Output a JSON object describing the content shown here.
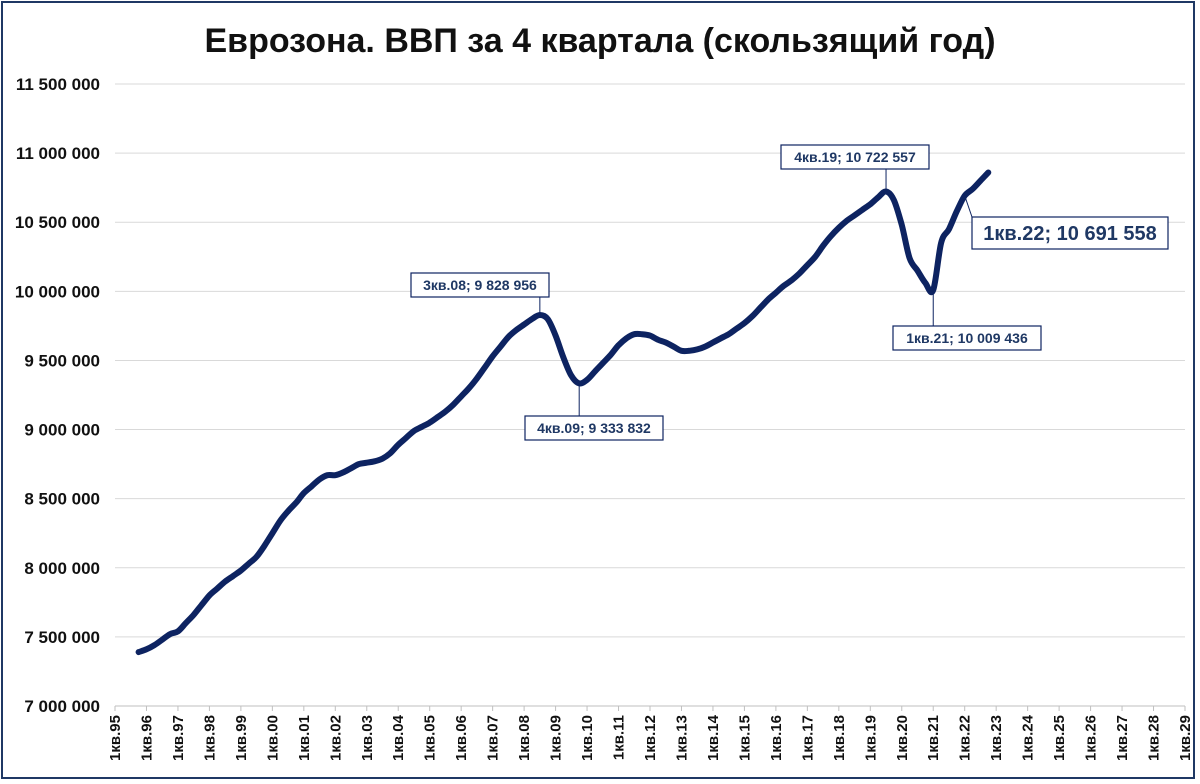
{
  "chart_data": {
    "type": "line",
    "title": "Еврозона. ВВП за 4 квартала (скользящий год)",
    "xlabel": "",
    "ylabel": "",
    "ylim": [
      7000000,
      11500000
    ],
    "y_ticks": [
      7000000,
      7500000,
      8000000,
      8500000,
      9000000,
      9500000,
      10000000,
      10500000,
      11000000,
      11500000
    ],
    "y_tick_labels": [
      "7 000 000",
      "7 500 000",
      "8 000 000",
      "8 500 000",
      "9 000 000",
      "9 500 000",
      "10 000 000",
      "10 500 000",
      "11 000 000",
      "11 500 000"
    ],
    "x_tick_labels": [
      "1кв.95",
      "1кв.96",
      "1кв.97",
      "1кв.98",
      "1кв.99",
      "1кв.00",
      "1кв.01",
      "1кв.02",
      "1кв.03",
      "1кв.04",
      "1кв.05",
      "1кв.06",
      "1кв.07",
      "1кв.08",
      "1кв.09",
      "1кв.10",
      "1кв.11",
      "1кв.12",
      "1кв.13",
      "1кв.14",
      "1кв.15",
      "1кв.16",
      "1кв.17",
      "1кв.18",
      "1кв.19",
      "1кв.20",
      "1кв.21",
      "1кв.22",
      "1кв.23",
      "1кв.24",
      "1кв.25",
      "1кв.26",
      "1кв.27",
      "1кв.28",
      "1кв.29"
    ],
    "grid": true,
    "line_color": "#0d2361",
    "series": [
      {
        "values": [
          [
            1995.75,
            7390000
          ],
          [
            1996.0,
            7410000
          ],
          [
            1996.25,
            7440000
          ],
          [
            1996.5,
            7480000
          ],
          [
            1996.75,
            7520000
          ],
          [
            1997.0,
            7540000
          ],
          [
            1997.25,
            7600000
          ],
          [
            1997.5,
            7660000
          ],
          [
            1997.75,
            7730000
          ],
          [
            1998.0,
            7800000
          ],
          [
            1998.25,
            7850000
          ],
          [
            1998.5,
            7900000
          ],
          [
            1998.75,
            7940000
          ],
          [
            1999.0,
            7980000
          ],
          [
            1999.25,
            8030000
          ],
          [
            1999.5,
            8080000
          ],
          [
            1999.75,
            8160000
          ],
          [
            2000.0,
            8250000
          ],
          [
            2000.25,
            8340000
          ],
          [
            2000.5,
            8410000
          ],
          [
            2000.75,
            8470000
          ],
          [
            2001.0,
            8540000
          ],
          [
            2001.25,
            8590000
          ],
          [
            2001.5,
            8640000
          ],
          [
            2001.75,
            8670000
          ],
          [
            2002.0,
            8670000
          ],
          [
            2002.25,
            8690000
          ],
          [
            2002.5,
            8720000
          ],
          [
            2002.75,
            8750000
          ],
          [
            2003.0,
            8760000
          ],
          [
            2003.25,
            8770000
          ],
          [
            2003.5,
            8790000
          ],
          [
            2003.75,
            8830000
          ],
          [
            2004.0,
            8890000
          ],
          [
            2004.25,
            8940000
          ],
          [
            2004.5,
            8990000
          ],
          [
            2004.75,
            9020000
          ],
          [
            2005.0,
            9050000
          ],
          [
            2005.25,
            9090000
          ],
          [
            2005.5,
            9130000
          ],
          [
            2005.75,
            9180000
          ],
          [
            2006.0,
            9240000
          ],
          [
            2006.25,
            9300000
          ],
          [
            2006.5,
            9370000
          ],
          [
            2006.75,
            9450000
          ],
          [
            2007.0,
            9530000
          ],
          [
            2007.25,
            9600000
          ],
          [
            2007.5,
            9670000
          ],
          [
            2007.75,
            9720000
          ],
          [
            2008.0,
            9760000
          ],
          [
            2008.25,
            9800000
          ],
          [
            2008.5,
            9828956
          ],
          [
            2008.75,
            9800000
          ],
          [
            2009.0,
            9680000
          ],
          [
            2009.25,
            9520000
          ],
          [
            2009.5,
            9390000
          ],
          [
            2009.75,
            9333832
          ],
          [
            2010.0,
            9360000
          ],
          [
            2010.25,
            9420000
          ],
          [
            2010.5,
            9480000
          ],
          [
            2010.75,
            9540000
          ],
          [
            2011.0,
            9610000
          ],
          [
            2011.25,
            9660000
          ],
          [
            2011.5,
            9690000
          ],
          [
            2011.75,
            9690000
          ],
          [
            2012.0,
            9680000
          ],
          [
            2012.25,
            9650000
          ],
          [
            2012.5,
            9630000
          ],
          [
            2012.75,
            9600000
          ],
          [
            2013.0,
            9570000
          ],
          [
            2013.25,
            9570000
          ],
          [
            2013.5,
            9580000
          ],
          [
            2013.75,
            9600000
          ],
          [
            2014.0,
            9630000
          ],
          [
            2014.25,
            9660000
          ],
          [
            2014.5,
            9690000
          ],
          [
            2014.75,
            9730000
          ],
          [
            2015.0,
            9770000
          ],
          [
            2015.25,
            9820000
          ],
          [
            2015.5,
            9880000
          ],
          [
            2015.75,
            9940000
          ],
          [
            2016.0,
            9990000
          ],
          [
            2016.25,
            10040000
          ],
          [
            2016.5,
            10080000
          ],
          [
            2016.75,
            10130000
          ],
          [
            2017.0,
            10190000
          ],
          [
            2017.25,
            10250000
          ],
          [
            2017.5,
            10330000
          ],
          [
            2017.75,
            10400000
          ],
          [
            2018.0,
            10460000
          ],
          [
            2018.25,
            10510000
          ],
          [
            2018.5,
            10550000
          ],
          [
            2018.75,
            10590000
          ],
          [
            2019.0,
            10630000
          ],
          [
            2019.25,
            10680000
          ],
          [
            2019.5,
            10722557
          ],
          [
            2019.75,
            10660000
          ],
          [
            2020.0,
            10480000
          ],
          [
            2020.25,
            10240000
          ],
          [
            2020.5,
            10150000
          ],
          [
            2020.75,
            10060000
          ],
          [
            2021.0,
            10009436
          ],
          [
            2021.25,
            10350000
          ],
          [
            2021.5,
            10450000
          ],
          [
            2021.75,
            10580000
          ],
          [
            2022.0,
            10691558
          ],
          [
            2022.25,
            10740000
          ],
          [
            2022.5,
            10800000
          ],
          [
            2022.75,
            10860000
          ]
        ]
      }
    ],
    "annotations": [
      {
        "text": "3кв.08; 9 828 956",
        "x": 2008.5,
        "y": 9828956,
        "size": "normal"
      },
      {
        "text": "4кв.09; 9 333 832",
        "x": 2009.75,
        "y": 9333832,
        "size": "normal"
      },
      {
        "text": "4кв.19; 10 722 557",
        "x": 2019.5,
        "y": 10722557,
        "size": "normal"
      },
      {
        "text": "1кв.21; 10 009 436",
        "x": 2021.0,
        "y": 10009436,
        "size": "normal"
      },
      {
        "text": "1кв.22; 10 691 558",
        "x": 2022.0,
        "y": 10691558,
        "size": "large"
      }
    ]
  }
}
